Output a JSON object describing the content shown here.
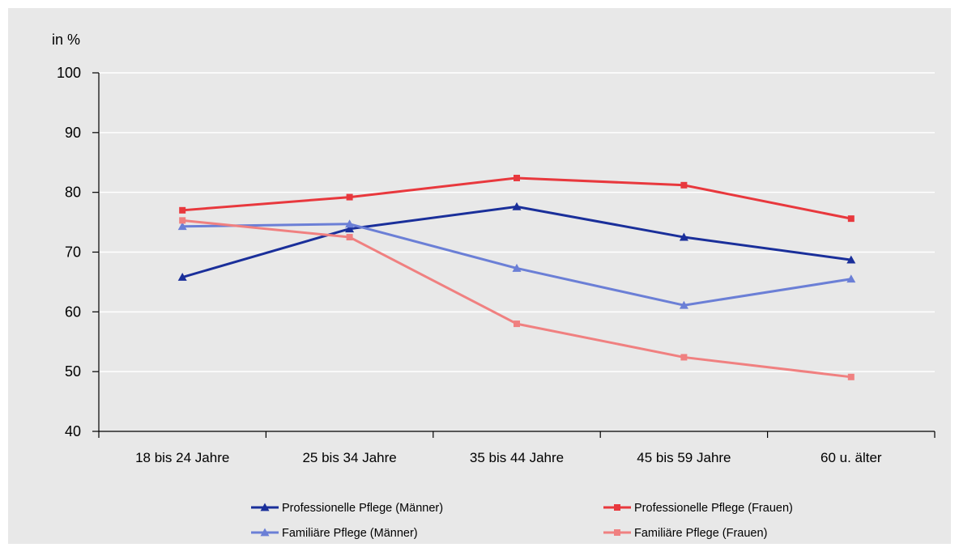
{
  "chart_data": {
    "type": "line",
    "unit_label": "in %",
    "title": "",
    "xlabel": "",
    "ylabel": "",
    "categories": [
      "18 bis 24 Jahre",
      "25 bis 34 Jahre",
      "35 bis 44 Jahre",
      "45 bis 59 Jahre",
      "60 u. älter"
    ],
    "ylim": [
      40,
      100
    ],
    "yticks": [
      40,
      50,
      60,
      70,
      80,
      90,
      100
    ],
    "grid": true,
    "legend_position": "bottom",
    "series": [
      {
        "name": "Professionelle Pflege (Männer)",
        "values": [
          65.8,
          73.9,
          77.6,
          72.5,
          68.7
        ],
        "color": "#1a2f9a",
        "marker": "triangle"
      },
      {
        "name": "Professionelle Pflege (Frauen)",
        "values": [
          77.0,
          79.2,
          82.4,
          81.2,
          75.6
        ],
        "color": "#e8383d",
        "marker": "square"
      },
      {
        "name": "Familiäre Pflege (Männer)",
        "values": [
          74.3,
          74.7,
          67.3,
          61.1,
          65.5
        ],
        "color": "#6b7fd6",
        "marker": "triangle"
      },
      {
        "name": "Familiäre Pflege (Frauen)",
        "values": [
          75.3,
          72.5,
          58.0,
          52.4,
          49.1
        ],
        "color": "#f08080",
        "marker": "square"
      }
    ]
  },
  "colors": {
    "plot_background": "#e8e8e8",
    "gridline": "#ffffff",
    "axis": "#000000"
  }
}
